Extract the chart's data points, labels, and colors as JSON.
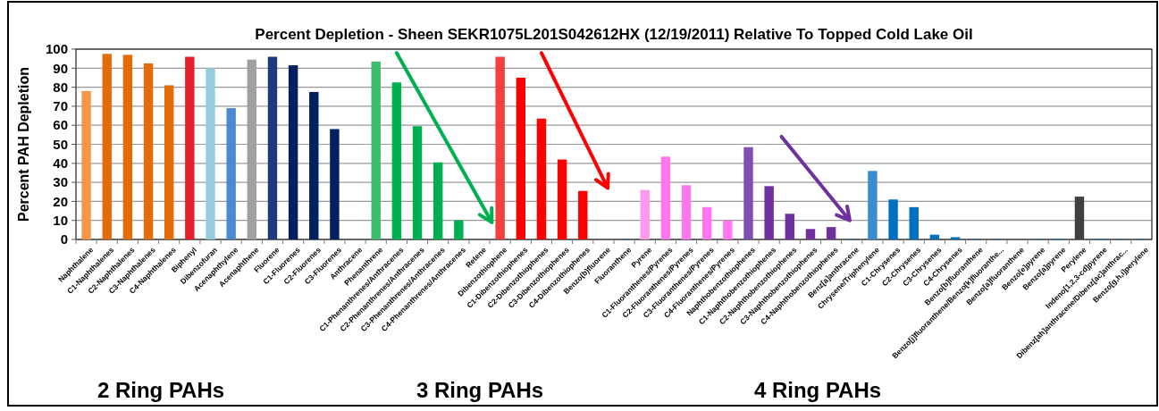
{
  "chart_data": {
    "type": "bar",
    "title": "Percent Depletion  - Sheen SEKR1075L201S042612HX  (12/19/2011) Relative To Topped Cold Lake Oil",
    "ylabel": "Percent PAH Depletion",
    "categories": [
      "Naphthalene",
      "C1-Naphthalenes",
      "C2-Naphthalenes",
      "C3-Naphthalenes",
      "C4-Naphthalenes",
      "Biphenyl",
      "Dibenzofuran",
      "Acenaphthylene",
      "Acenaphthene",
      "Fluorene",
      "C1-Fluorenes",
      "C2-Fluorenes",
      "C3-Fluorenes",
      "Anthracene",
      "Phenanthrene",
      "C1-Phenanthrenes/Anthracenes",
      "C2-Phenanthrenes/Anthracenes",
      "C3-Phenanthrenes/Anthracenes",
      "C4-Phenanthrenes/Anthracenes",
      "Retene",
      "Dibenzothiophene",
      "C1-Dibenzothiophenes",
      "C2-Dibenzothiophenes",
      "C3-Dibenzothiophenes",
      "C4-Dibenzothiophenes",
      "Benzo(b)fluorene",
      "Fluoranthene",
      "Pyrene",
      "C1-Fluoranthenes/Pyrenes",
      "C2-Fluoranthenes/Pyrenes",
      "C3-Fluoranthenes/Pyrenes",
      "C4-Fluoranthenes/Pyrenes",
      "Naphthobenzothiophenes",
      "C1-Naphthobenzothiophenes",
      "C2-Naphthobenzothiophenes",
      "C3-Naphthobenzothiophenes",
      "C4-Naphthobenzothiophenes",
      "Benz[a]anthracene",
      "Chrysene/Triphenylene",
      "C1-Chrysenes",
      "C2-Chrysenes",
      "C3-Chrysenes",
      "C4-Chrysenes",
      "Benzo[b]fluoranthene",
      "Benzo[j]fluoranthene/Benzo[k]fluoranthe...",
      "Benzo[a]fluoranthene",
      "Benzo[e]pyrene",
      "Benzo[a]pyrene",
      "Perylene",
      "Indeno[1,2,3-cd]pyrene",
      "Dibenz[ah]anthracene/Dibenz[ac]anthrac...",
      "Benzo[g,h,i]perylene"
    ],
    "values": [
      78,
      97.5,
      97,
      92.5,
      81,
      96,
      90,
      69,
      94.5,
      96,
      91.5,
      77.5,
      58,
      0,
      93.5,
      82.5,
      59.5,
      40.5,
      10,
      0,
      96,
      85,
      63.5,
      42,
      25.5,
      0,
      0.3,
      26,
      43.5,
      28.5,
      17,
      10,
      48.5,
      28,
      13.5,
      5.5,
      6.5,
      0.3,
      36,
      21,
      17,
      2.5,
      1.2,
      0.3,
      0.3,
      0,
      0.3,
      0.3,
      22.5,
      0.3,
      0.3,
      0.3
    ],
    "colors": [
      "#f79646",
      "#e36c09",
      "#e36c09",
      "#e36c09",
      "#e36c09",
      "#e5202a",
      "#93cddd",
      "#4a8ad0",
      "#a0a0a0",
      "#1f3a7a",
      "#002060",
      "#002060",
      "#002060",
      "#002060",
      "#3cbc6c",
      "#00b050",
      "#00b050",
      "#00b050",
      "#00b050",
      "#00b050",
      "#f04040",
      "#ff0000",
      "#ff0000",
      "#ff0000",
      "#ff0000",
      "#ff0000",
      "#0070c0",
      "#ff99ee",
      "#ff77ee",
      "#ff77ee",
      "#ff77ee",
      "#ff77ee",
      "#8050b0",
      "#7030a0",
      "#7030a0",
      "#7030a0",
      "#7030a0",
      "#0070c0",
      "#3c8ad0",
      "#0070c0",
      "#0070c0",
      "#0070c0",
      "#0070c0",
      "#0070c0",
      "#0070c0",
      "#0070c0",
      "#0070c0",
      "#0070c0",
      "#404040",
      "#0070c0",
      "#0070c0",
      "#0070c0"
    ],
    "ylim": [
      0,
      100
    ],
    "yticks": [
      0,
      10,
      20,
      30,
      40,
      50,
      60,
      70,
      80,
      90,
      100
    ],
    "grid": "y",
    "annotations": [
      "2 Ring PAHs",
      "3 Ring PAHs",
      "4 Ring PAHs"
    ]
  }
}
